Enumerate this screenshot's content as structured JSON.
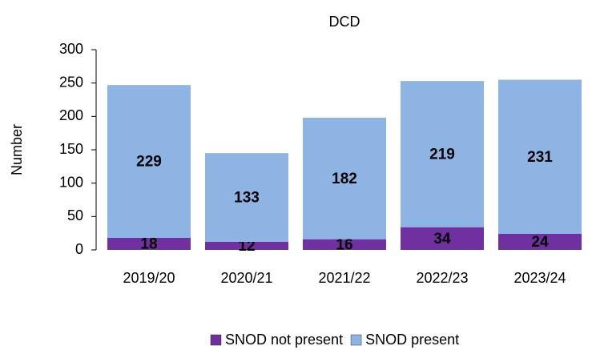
{
  "chart_data": {
    "type": "stacked_bar",
    "title": "DCD",
    "ylabel": "Number",
    "categories": [
      "2019/20",
      "2020/21",
      "2021/22",
      "2022/23",
      "2023/24"
    ],
    "series": [
      {
        "name": "SNOD not present",
        "color": "#7030a0",
        "values": [
          18,
          12,
          16,
          34,
          24
        ]
      },
      {
        "name": "SNOD present",
        "color": "#8eb4e3",
        "values": [
          229,
          133,
          182,
          219,
          231
        ]
      }
    ],
    "ylim": [
      0,
      300
    ],
    "yticks": [
      0,
      50,
      100,
      150,
      200,
      250,
      300
    ],
    "grid": false,
    "legend": "bottom"
  }
}
